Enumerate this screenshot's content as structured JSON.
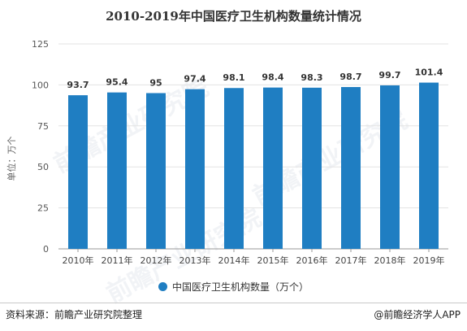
{
  "title": "2010-2019年中国医疗卫生机构数量统计情况",
  "source": "资料来源：前瞻产业研究院整理",
  "brand": "@前瞻经济学人APP",
  "watermark": "前瞻产业研究院",
  "colors": {
    "bar": "#1f7ec2",
    "grid": "#e3e3e3",
    "axis": "#999999",
    "text": "#333333"
  },
  "chart_data": {
    "type": "bar",
    "title": "2010-2019年中国医疗卫生机构数量统计情况",
    "ylabel": "单位：万个",
    "xlabel": "",
    "categories": [
      "2010年",
      "2011年",
      "2012年",
      "2013年",
      "2014年",
      "2015年",
      "2016年",
      "2017年",
      "2018年",
      "2019年"
    ],
    "series": [
      {
        "name": "中国医疗卫生机构数量（万个）",
        "values": [
          93.7,
          95.4,
          95,
          97.4,
          98.1,
          98.4,
          98.3,
          98.7,
          99.7,
          101.4
        ]
      }
    ],
    "ylim": [
      0,
      125
    ],
    "yticks": [
      0,
      25,
      50,
      75,
      100,
      125
    ],
    "grid": true,
    "legend_position": "bottom"
  }
}
